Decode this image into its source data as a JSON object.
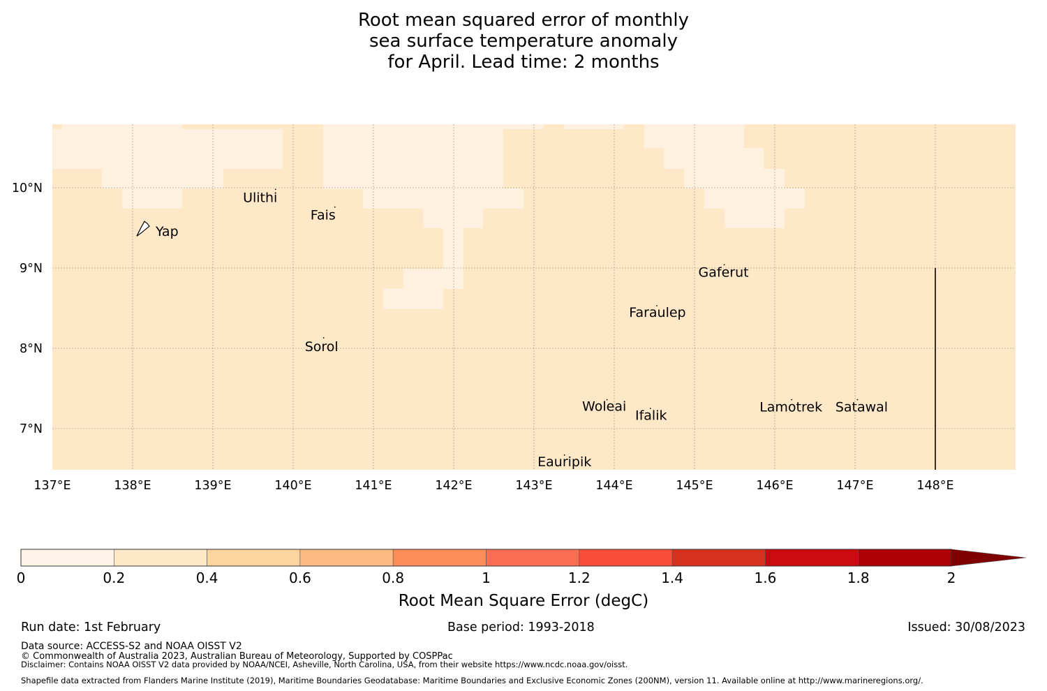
{
  "title": {
    "line1": "Root mean squared error of monthly",
    "line2": "sea surface temperature anomaly",
    "line3": "for April. Lead time: 2 months"
  },
  "map": {
    "lon_labels": [
      "137°E",
      "138°E",
      "139°E",
      "140°E",
      "141°E",
      "142°E",
      "143°E",
      "144°E",
      "145°E",
      "146°E",
      "147°E",
      "148°E"
    ],
    "lat_labels": [
      "10°N",
      "9°N",
      "8°N",
      "7°N"
    ],
    "islands": [
      {
        "name": "Yap",
        "lon": 138.13,
        "lat": 9.52
      },
      {
        "name": "Ulithi",
        "lon": 139.78,
        "lat": 9.98
      },
      {
        "name": "Fais",
        "lon": 140.52,
        "lat": 9.76
      },
      {
        "name": "Sorol",
        "lon": 140.38,
        "lat": 8.13
      },
      {
        "name": "Gaferut",
        "lon": 145.37,
        "lat": 9.04
      },
      {
        "name": "Faraulep",
        "lon": 144.53,
        "lat": 8.53
      },
      {
        "name": "Woleai",
        "lon": 143.91,
        "lat": 7.36
      },
      {
        "name": "Ifalik",
        "lon": 144.45,
        "lat": 7.25
      },
      {
        "name": "Lamotrek",
        "lon": 146.21,
        "lat": 7.36
      },
      {
        "name": "Satawal",
        "lon": 147.03,
        "lat": 7.36
      },
      {
        "name": "Eauripik",
        "lon": 143.38,
        "lat": 6.67
      }
    ],
    "colors": {
      "low": "#fff1df",
      "mid": "#fee8c8"
    }
  },
  "colorbar": {
    "ticks": [
      "0",
      "0.2",
      "0.4",
      "0.6",
      "0.8",
      "1",
      "1.2",
      "1.4",
      "1.6",
      "1.8",
      "2"
    ],
    "colors": [
      "#fff4e5",
      "#fee8c8",
      "#fdd49e",
      "#fdbb84",
      "#fc8d59",
      "#fc6e51",
      "#fa4e3a",
      "#d7301f",
      "#c90a0f",
      "#ac0002",
      "#7f0000"
    ],
    "label": "Root Mean Square Error (degC)"
  },
  "footer": {
    "run_date": "Run date: 1st February",
    "base_period": "Base period: 1993-2018",
    "issued": "Issued: 30/08/2023",
    "data_source": "Data source: ACCESS-S2 and NOAA OISST V2",
    "copyright": "© Commonwealth of Australia 2023, Australian Bureau of Meteorology, Supported by COSPPac",
    "disclaimer": "Disclaimer: Contains NOAA OISST V2 data provided by NOAA/NCEI, Asheville, North Carolina, USA, from their website https://www.ncdc.noaa.gov/oisst.",
    "shapefile": "Shapefile data extracted from Flanders Marine Institute (2019), Maritime Boundaries Geodatabase: Maritime Boundaries and Exclusive Economic Zones (200NM), version 11. Available online at http://www.marineregions.org/."
  }
}
